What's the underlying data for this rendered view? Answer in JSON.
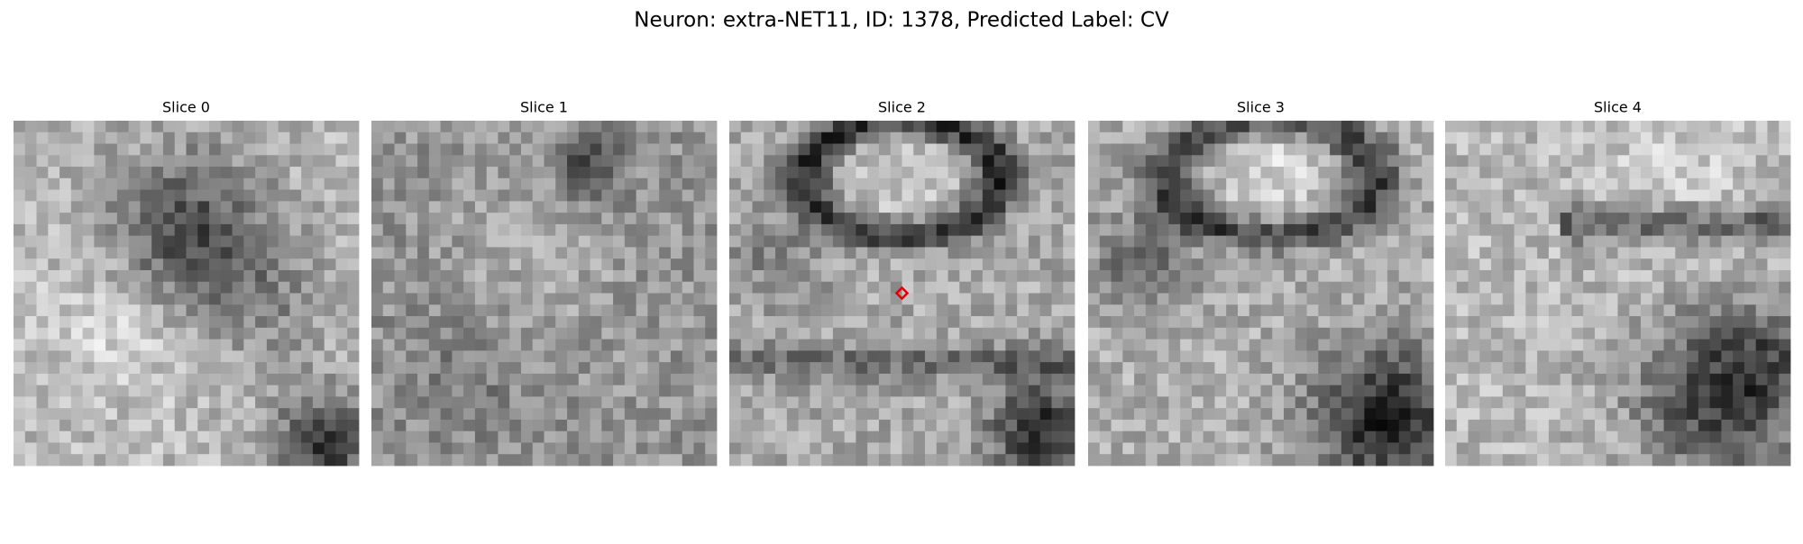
{
  "title": "Neuron: extra-NET11, ID: 1378, Predicted Label: CV",
  "panels": [
    {
      "title": "Slice 0"
    },
    {
      "title": "Slice 1"
    },
    {
      "title": "Slice 2"
    },
    {
      "title": "Slice 3"
    },
    {
      "title": "Slice 4"
    }
  ]
}
